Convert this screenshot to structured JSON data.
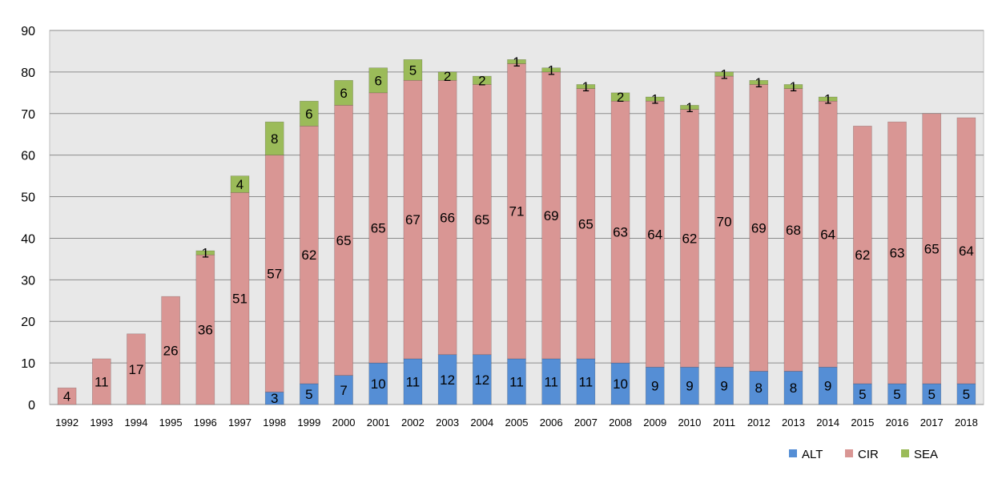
{
  "chart_data": {
    "type": "bar",
    "stacked": true,
    "categories": [
      "1992",
      "1993",
      "1994",
      "1995",
      "1996",
      "1997",
      "1998",
      "1999",
      "2000",
      "2001",
      "2002",
      "2003",
      "2004",
      "2005",
      "2006",
      "2007",
      "2008",
      "2009",
      "2010",
      "2011",
      "2012",
      "2013",
      "2014",
      "2015",
      "2016",
      "2017",
      "2018"
    ],
    "series": [
      {
        "name": "ALT",
        "color": "#558ed5",
        "values": [
          0,
          0,
          0,
          0,
          0,
          0,
          3,
          5,
          7,
          10,
          11,
          12,
          12,
          11,
          11,
          11,
          10,
          9,
          9,
          9,
          8,
          8,
          9,
          5,
          5,
          5,
          5
        ]
      },
      {
        "name": "CIR",
        "color": "#d99694",
        "values": [
          4,
          11,
          17,
          26,
          36,
          51,
          57,
          62,
          65,
          65,
          67,
          66,
          65,
          71,
          69,
          65,
          63,
          64,
          62,
          70,
          69,
          68,
          64,
          62,
          63,
          65,
          64
        ]
      },
      {
        "name": "SEA",
        "color": "#9bbb59",
        "values": [
          0,
          0,
          0,
          0,
          1,
          4,
          8,
          6,
          6,
          6,
          5,
          2,
          2,
          1,
          1,
          1,
          2,
          1,
          1,
          1,
          1,
          1,
          1,
          0,
          0,
          0,
          0
        ]
      }
    ],
    "ylim": [
      0,
      90
    ],
    "yticks": [
      0,
      10,
      20,
      30,
      40,
      50,
      60,
      70,
      80,
      90
    ],
    "grid": true,
    "legend": "bottom-right",
    "title": "",
    "xlabel": "",
    "ylabel": ""
  }
}
